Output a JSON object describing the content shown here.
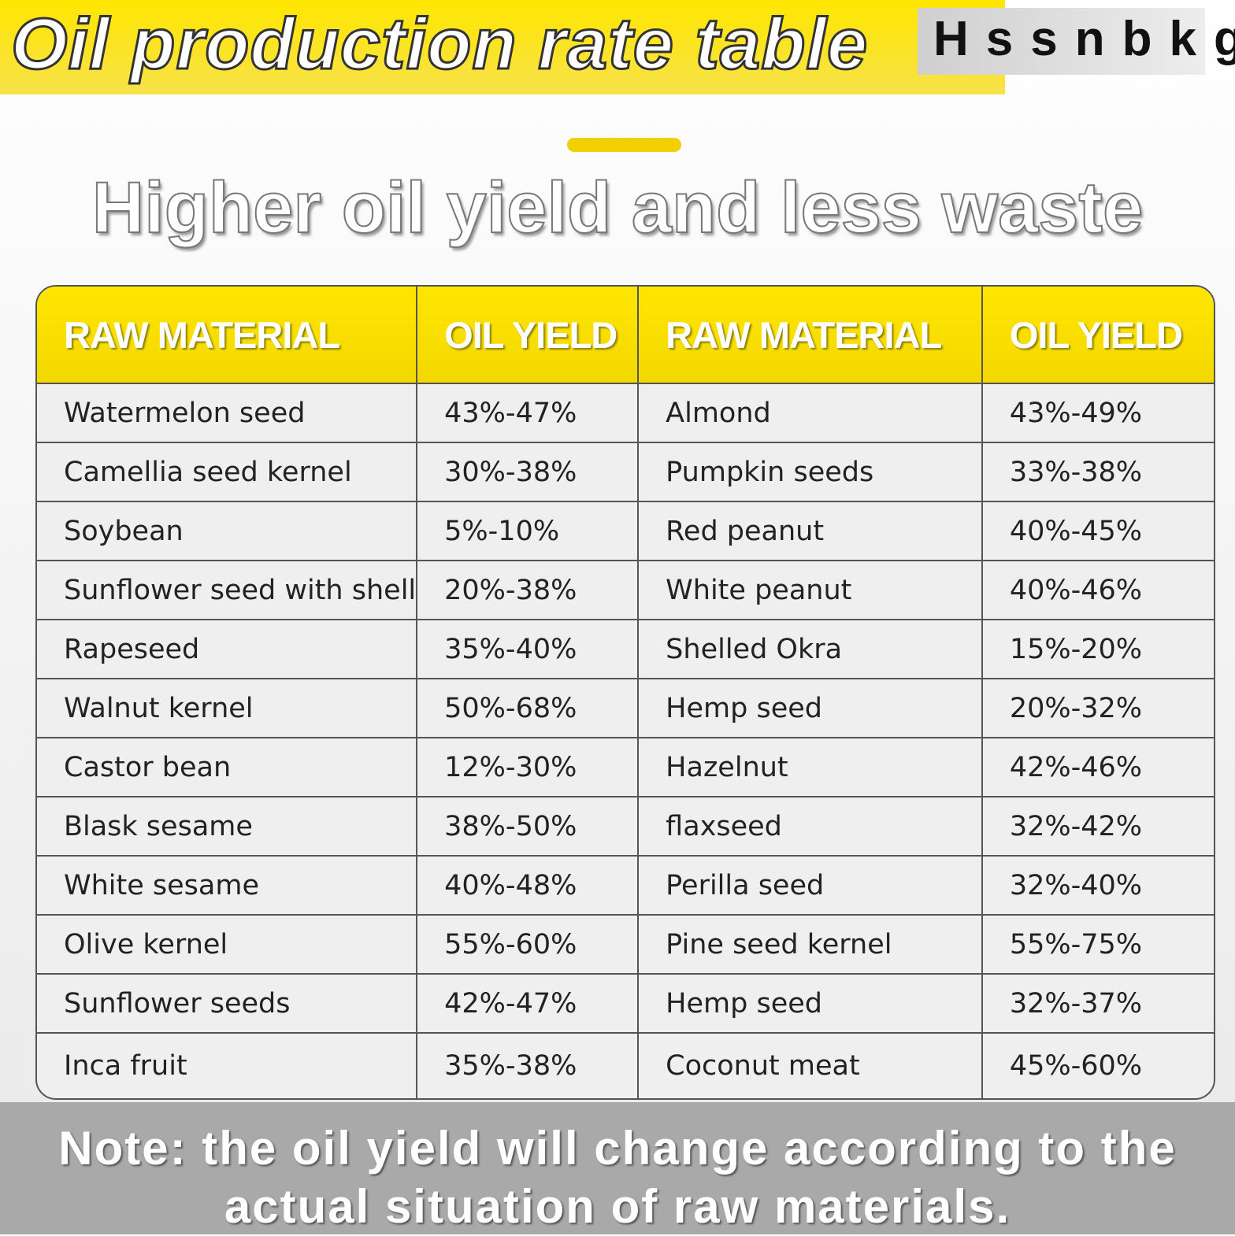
{
  "header": {
    "title": "Oil production rate table",
    "brand": "Hssnbkg"
  },
  "subtitle": "Higher oil yield and less waste",
  "table": {
    "headers": [
      "RAW MATERIAL",
      "OIL YIELD",
      "RAW MATERIAL",
      "OIL YIELD"
    ],
    "rows": [
      [
        "Watermelon seed",
        "43%-47%",
        "Almond",
        "43%-49%"
      ],
      [
        "Camellia seed kernel",
        "30%-38%",
        "Pumpkin seeds",
        "33%-38%"
      ],
      [
        "Soybean",
        "5%-10%",
        "Red peanut",
        "40%-45%"
      ],
      [
        "Sunflower seed with shell",
        "20%-38%",
        "White peanut",
        "40%-46%"
      ],
      [
        "Rapeseed",
        "35%-40%",
        "Shelled Okra",
        "15%-20%"
      ],
      [
        "Walnut kernel",
        "50%-68%",
        "Hemp seed",
        "20%-32%"
      ],
      [
        "Castor bean",
        "12%-30%",
        "Hazelnut",
        "42%-46%"
      ],
      [
        "Blask sesame",
        "38%-50%",
        "flaxseed",
        "32%-42%"
      ],
      [
        "White sesame",
        "40%-48%",
        "Perilla seed",
        "32%-40%"
      ],
      [
        "Olive kernel",
        "55%-60%",
        "Pine seed kernel",
        "55%-75%"
      ],
      [
        "Sunflower seeds",
        "42%-47%",
        "Hemp seed",
        "32%-37%"
      ],
      [
        "Inca fruit",
        "35%-38%",
        "Coconut meat",
        "45%-60%"
      ]
    ]
  },
  "note": "Note: the oil yield will change according to the actual situation of raw materials."
}
